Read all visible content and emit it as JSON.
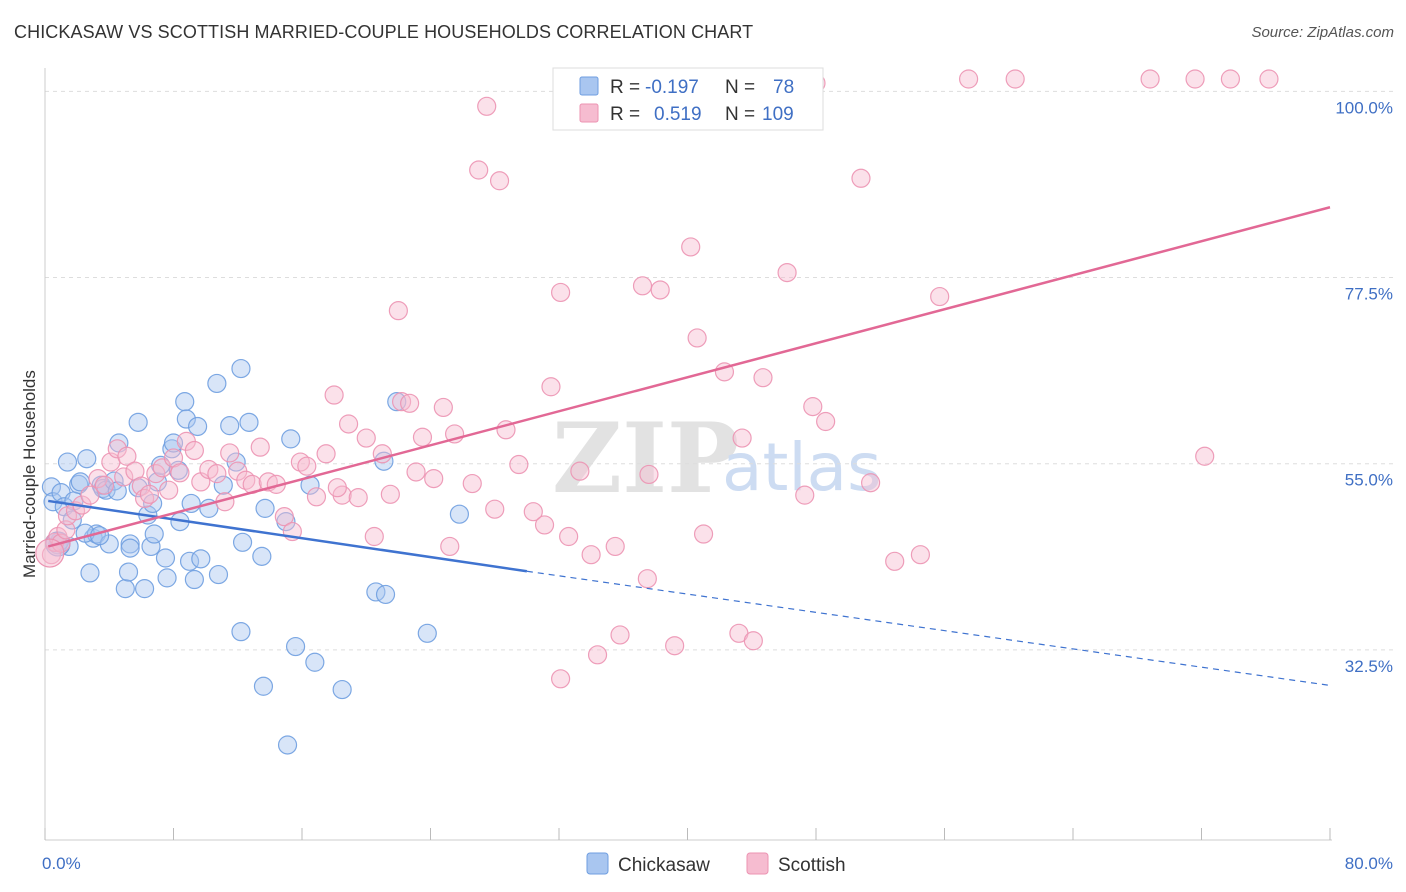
{
  "title": "CHICKASAW VS SCOTTISH MARRIED-COUPLE HOUSEHOLDS CORRELATION CHART",
  "source": "Source: ZipAtlas.com",
  "watermark": {
    "zip": "ZIP",
    "atlas": "atlas"
  },
  "colors": {
    "chickasaw_fill": "#a9c6f0",
    "chickasaw_stroke": "#6f9ee0",
    "chickasaw_line": "#3f73d0",
    "scottish_fill": "#f6bcd0",
    "scottish_stroke": "#ec93b2",
    "scottish_line": "#e26895",
    "tick_color": "#3f6fc4",
    "grid": "#dddddd"
  },
  "legend": {
    "rows": [
      {
        "series": "Chickasaw",
        "r_label": "R =",
        "r_value": "-0.197",
        "n_label": "N =",
        "n_value": "78"
      },
      {
        "series": "Scottish",
        "r_label": "R =",
        "r_value": "0.519",
        "n_label": "N =",
        "n_value": "109"
      }
    ]
  },
  "bottom_legend": [
    "Chickasaw",
    "Scottish"
  ],
  "chart_data": {
    "type": "scatter",
    "title": "CHICKASAW VS SCOTTISH MARRIED-COUPLE HOUSEHOLDS CORRELATION CHART",
    "xlabel": "",
    "ylabel": "Married-couple Households",
    "xlim": [
      0,
      80
    ],
    "ylim": [
      10,
      102
    ],
    "x_tick_labels": [
      "0.0%",
      "80.0%"
    ],
    "y_ticks": [
      {
        "value": 32.5,
        "label": "32.5%"
      },
      {
        "value": 55.0,
        "label": "55.0%"
      },
      {
        "value": 77.5,
        "label": "77.5%"
      },
      {
        "value": 100.0,
        "label": "100.0%"
      }
    ],
    "series": [
      {
        "name": "Chickasaw",
        "r": -0.197,
        "n": 78,
        "trend": {
          "x0": 0.2,
          "y0": 50.5,
          "x1": 30.0,
          "y1": 42.0,
          "dash_to_x": 80.0,
          "dash_to_y": 28.2
        },
        "points": [
          [
            0.4,
            52.2
          ],
          [
            0.5,
            50.4
          ],
          [
            0.6,
            45.5
          ],
          [
            0.8,
            45.2
          ],
          [
            1.0,
            51.5
          ],
          [
            1.2,
            49.8
          ],
          [
            1.4,
            55.2
          ],
          [
            1.5,
            45.0
          ],
          [
            1.7,
            48.2
          ],
          [
            1.8,
            50.5
          ],
          [
            2.1,
            52.5
          ],
          [
            2.2,
            52.8
          ],
          [
            2.6,
            55.6
          ],
          [
            2.8,
            41.8
          ],
          [
            3.0,
            46.0
          ],
          [
            3.2,
            46.5
          ],
          [
            3.5,
            52.4
          ],
          [
            3.6,
            52.0
          ],
          [
            3.8,
            51.8
          ],
          [
            4.0,
            45.3
          ],
          [
            4.3,
            52.9
          ],
          [
            4.5,
            51.7
          ],
          [
            4.6,
            57.5
          ],
          [
            5.0,
            39.9
          ],
          [
            5.2,
            41.9
          ],
          [
            5.3,
            45.3
          ],
          [
            5.8,
            52.1
          ],
          [
            5.8,
            60.0
          ],
          [
            6.2,
            39.9
          ],
          [
            6.4,
            48.8
          ],
          [
            6.6,
            45.0
          ],
          [
            6.7,
            50.2
          ],
          [
            6.8,
            46.5
          ],
          [
            7.0,
            52.8
          ],
          [
            7.2,
            54.8
          ],
          [
            7.5,
            43.6
          ],
          [
            7.6,
            41.2
          ],
          [
            7.9,
            56.8
          ],
          [
            8.0,
            57.5
          ],
          [
            8.3,
            54.2
          ],
          [
            8.4,
            48.0
          ],
          [
            8.7,
            62.5
          ],
          [
            8.8,
            60.4
          ],
          [
            9.0,
            43.2
          ],
          [
            9.1,
            50.2
          ],
          [
            9.3,
            41.0
          ],
          [
            9.5,
            59.5
          ],
          [
            9.7,
            43.5
          ],
          [
            10.2,
            49.6
          ],
          [
            10.7,
            64.7
          ],
          [
            10.8,
            41.6
          ],
          [
            11.1,
            52.4
          ],
          [
            11.5,
            59.6
          ],
          [
            11.9,
            55.2
          ],
          [
            12.2,
            66.5
          ],
          [
            12.2,
            34.7
          ],
          [
            12.3,
            45.5
          ],
          [
            12.7,
            60.0
          ],
          [
            13.5,
            43.8
          ],
          [
            13.6,
            28.1
          ],
          [
            13.7,
            49.6
          ],
          [
            15.0,
            48.0
          ],
          [
            15.1,
            21.0
          ],
          [
            15.3,
            58.0
          ],
          [
            15.6,
            32.9
          ],
          [
            16.5,
            52.4
          ],
          [
            16.8,
            31.0
          ],
          [
            18.5,
            27.7
          ],
          [
            20.6,
            39.5
          ],
          [
            21.1,
            55.3
          ],
          [
            21.2,
            39.2
          ],
          [
            21.9,
            62.5
          ],
          [
            23.8,
            34.5
          ],
          [
            25.8,
            48.9
          ],
          [
            0.9,
            45.6
          ],
          [
            2.5,
            46.6
          ],
          [
            3.4,
            46.3
          ],
          [
            5.3,
            44.8
          ]
        ]
      },
      {
        "name": "Scottish",
        "r": 0.519,
        "n": 109,
        "trend": {
          "x0": 0.2,
          "y0": 45.0,
          "x1": 80.0,
          "y1": 86.0
        },
        "points": [
          [
            0.4,
            44.0
          ],
          [
            0.6,
            45.5
          ],
          [
            0.8,
            46.2
          ],
          [
            1.0,
            45.4
          ],
          [
            1.3,
            47.0
          ],
          [
            1.4,
            48.7
          ],
          [
            1.9,
            49.3
          ],
          [
            2.3,
            50.0
          ],
          [
            2.8,
            51.2
          ],
          [
            3.3,
            53.2
          ],
          [
            3.7,
            52.4
          ],
          [
            4.1,
            55.2
          ],
          [
            4.5,
            56.8
          ],
          [
            4.9,
            53.4
          ],
          [
            5.1,
            55.9
          ],
          [
            5.6,
            54.1
          ],
          [
            6.0,
            52.3
          ],
          [
            6.2,
            50.8
          ],
          [
            6.5,
            51.3
          ],
          [
            6.9,
            53.8
          ],
          [
            7.3,
            54.5
          ],
          [
            7.7,
            51.8
          ],
          [
            8.0,
            55.7
          ],
          [
            8.4,
            53.9
          ],
          [
            8.8,
            57.7
          ],
          [
            9.3,
            56.6
          ],
          [
            9.7,
            52.8
          ],
          [
            10.2,
            54.3
          ],
          [
            10.7,
            53.8
          ],
          [
            11.2,
            50.4
          ],
          [
            11.5,
            56.3
          ],
          [
            12.0,
            54.1
          ],
          [
            12.5,
            53.0
          ],
          [
            12.9,
            52.5
          ],
          [
            13.4,
            57.0
          ],
          [
            13.9,
            52.8
          ],
          [
            14.4,
            52.5
          ],
          [
            14.9,
            48.6
          ],
          [
            15.4,
            46.8
          ],
          [
            15.9,
            55.2
          ],
          [
            16.3,
            54.7
          ],
          [
            16.9,
            51.0
          ],
          [
            17.5,
            56.2
          ],
          [
            18.0,
            63.3
          ],
          [
            18.5,
            51.2
          ],
          [
            18.9,
            59.8
          ],
          [
            19.5,
            50.9
          ],
          [
            20.0,
            58.1
          ],
          [
            20.5,
            46.2
          ],
          [
            21.0,
            56.2
          ],
          [
            21.5,
            51.3
          ],
          [
            22.0,
            73.5
          ],
          [
            22.2,
            62.5
          ],
          [
            22.7,
            62.3
          ],
          [
            23.1,
            54.0
          ],
          [
            23.5,
            58.2
          ],
          [
            24.2,
            53.2
          ],
          [
            24.8,
            61.8
          ],
          [
            25.2,
            45.0
          ],
          [
            25.5,
            58.6
          ],
          [
            26.6,
            52.6
          ],
          [
            27.5,
            98.2
          ],
          [
            27.0,
            90.5
          ],
          [
            28.3,
            89.2
          ],
          [
            28.7,
            59.1
          ],
          [
            29.5,
            54.9
          ],
          [
            30.4,
            49.2
          ],
          [
            31.1,
            47.6
          ],
          [
            31.5,
            64.3
          ],
          [
            32.1,
            75.7
          ],
          [
            32.1,
            29.0
          ],
          [
            32.6,
            46.2
          ],
          [
            33.3,
            54.1
          ],
          [
            34.0,
            44.0
          ],
          [
            34.4,
            31.9
          ],
          [
            35.5,
            45.0
          ],
          [
            35.8,
            34.3
          ],
          [
            37.2,
            76.5
          ],
          [
            37.5,
            41.1
          ],
          [
            37.6,
            53.7
          ],
          [
            38.3,
            76.0
          ],
          [
            39.2,
            33.0
          ],
          [
            40.2,
            81.2
          ],
          [
            40.6,
            70.2
          ],
          [
            41.0,
            46.5
          ],
          [
            42.3,
            66.1
          ],
          [
            43.2,
            34.5
          ],
          [
            43.4,
            58.1
          ],
          [
            44.1,
            33.6
          ],
          [
            44.7,
            65.4
          ],
          [
            46.2,
            78.1
          ],
          [
            47.3,
            51.2
          ],
          [
            47.8,
            61.9
          ],
          [
            48.6,
            60.1
          ],
          [
            50.8,
            89.5
          ],
          [
            51.4,
            52.7
          ],
          [
            52.9,
            43.2
          ],
          [
            54.5,
            44.0
          ],
          [
            55.7,
            75.2
          ],
          [
            57.5,
            101.5
          ],
          [
            60.4,
            101.5
          ],
          [
            68.8,
            101.5
          ],
          [
            71.6,
            101.5
          ],
          [
            72.2,
            55.9
          ],
          [
            73.8,
            101.5
          ],
          [
            76.2,
            101.5
          ],
          [
            48.0,
            101.0
          ],
          [
            28.0,
            49.5
          ],
          [
            18.2,
            52.1
          ]
        ]
      }
    ]
  }
}
